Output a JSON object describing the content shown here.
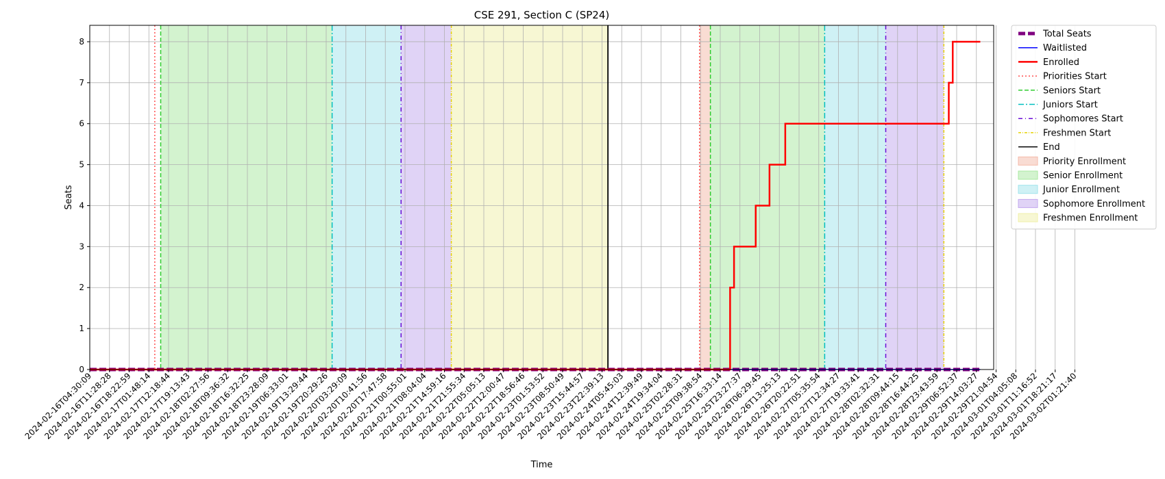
{
  "chart_data": {
    "type": "line",
    "title": "CSE 291, Section C (SP24)",
    "xlabel": "Time",
    "ylabel": "Seats",
    "ylim": [
      0,
      8.4
    ],
    "y_ticks": [
      0,
      1,
      2,
      3,
      4,
      5,
      6,
      7,
      8
    ],
    "grid": true,
    "legend_placement": "outside-right-top",
    "x_tick_labels": [
      "2024-02-16T04:30:09",
      "2024-02-16T11:28:28",
      "2024-02-16T18:22:59",
      "2024-02-17T01:48:14",
      "2024-02-17T12:18:44",
      "2024-02-17T19:13:43",
      "2024-02-18T02:27:56",
      "2024-02-18T09:36:32",
      "2024-02-18T16:32:25",
      "2024-02-18T23:28:09",
      "2024-02-19T06:33:01",
      "2024-02-19T13:29:44",
      "2024-02-19T20:29:26",
      "2024-02-20T03:29:09",
      "2024-02-20T10:41:56",
      "2024-02-20T17:47:58",
      "2024-02-21T00:55:01",
      "2024-02-21T08:04:04",
      "2024-02-21T14:59:16",
      "2024-02-21T21:55:34",
      "2024-02-22T05:05:13",
      "2024-02-22T12:00:47",
      "2024-02-22T18:56:46",
      "2024-02-23T01:53:52",
      "2024-02-23T08:50:49",
      "2024-02-23T15:44:57",
      "2024-02-23T22:39:13",
      "2024-02-24T05:45:03",
      "2024-02-24T12:39:49",
      "2024-02-24T19:34:04",
      "2024-02-25T02:28:31",
      "2024-02-25T09:38:54",
      "2024-02-25T16:33:14",
      "2024-02-25T23:27:37",
      "2024-02-26T06:29:45",
      "2024-02-26T13:25:13",
      "2024-02-26T20:22:51",
      "2024-02-27T05:35:54",
      "2024-02-27T12:34:27",
      "2024-02-27T19:33:41",
      "2024-02-28T02:32:31",
      "2024-02-28T09:44:15",
      "2024-02-28T16:44:25",
      "2024-02-28T23:43:59",
      "2024-02-29T06:52:37",
      "2024-02-29T14:03:27",
      "2024-02-29T21:04:54",
      "2024-03-01T04:05:08",
      "2024-03-01T11:16:52",
      "2024-03-01T18:21:17",
      "2024-03-02T01:21:40"
    ],
    "x_range_index": [
      0,
      45.2
    ],
    "series": [
      {
        "name": "Total Seats",
        "color": "#800080",
        "style": "dashed-thick",
        "x": [
          0,
          45.2
        ],
        "y": [
          0,
          0
        ]
      },
      {
        "name": "Waitlisted",
        "color": "#0000ff",
        "style": "solid",
        "x": [
          0,
          45.2
        ],
        "y": [
          0,
          0
        ]
      },
      {
        "name": "Enrolled",
        "color": "#ff0000",
        "style": "step",
        "x": [
          0,
          32.5,
          32.5,
          32.7,
          32.7,
          33.8,
          33.8,
          34.5,
          34.5,
          35.3,
          35.3,
          37.8,
          37.8,
          43.6,
          43.6,
          43.8,
          43.8,
          45.2
        ],
        "y": [
          0,
          0,
          2,
          2,
          3,
          3,
          4,
          4,
          5,
          5,
          6,
          6,
          6,
          6,
          7,
          7,
          8,
          8
        ]
      }
    ],
    "start_lines": [
      {
        "name": "Priorities Start",
        "color": "#ff4d4d",
        "style": "dotted",
        "x": [
          3.3,
          30.95
        ]
      },
      {
        "name": "Seniors Start",
        "color": "#2ecc2e",
        "style": "dashed",
        "x": [
          3.6,
          31.5
        ]
      },
      {
        "name": "Juniors Start",
        "color": "#00bfbf",
        "style": "dashdot",
        "x": [
          12.3,
          37.3
        ]
      },
      {
        "name": "Sophomores Start",
        "color": "#6a0dd6",
        "style": "dotdash",
        "x": [
          15.8,
          40.4
        ]
      },
      {
        "name": "Freshmen Start",
        "color": "#e6d200",
        "style": "dashdot-fine",
        "x": [
          18.35,
          43.35
        ]
      },
      {
        "name": "End",
        "color": "#000000",
        "style": "solid",
        "x": [
          26.3
        ]
      }
    ],
    "bands": [
      {
        "name": "Priority Enrollment",
        "color": "#f4b9a8",
        "ranges": [
          [
            30.95,
            31.5
          ]
        ]
      },
      {
        "name": "Senior Enrollment",
        "color": "#a8e8a0",
        "ranges": [
          [
            3.6,
            12.3
          ],
          [
            31.5,
            37.3
          ]
        ]
      },
      {
        "name": "Junior Enrollment",
        "color": "#a0e4ec",
        "ranges": [
          [
            12.3,
            15.8
          ],
          [
            37.3,
            40.4
          ]
        ]
      },
      {
        "name": "Sophomore Enrollment",
        "color": "#c2a8ee",
        "ranges": [
          [
            15.8,
            18.35
          ],
          [
            40.4,
            43.35
          ]
        ]
      },
      {
        "name": "Freshmen Enrollment",
        "color": "#f0f0a8",
        "ranges": [
          [
            18.35,
            26.3
          ]
        ]
      }
    ],
    "legend": [
      {
        "label": "Total Seats",
        "kind": "line",
        "color": "#800080",
        "style": "dashed-thick"
      },
      {
        "label": "Waitlisted",
        "kind": "line",
        "color": "#0000ff",
        "style": "solid"
      },
      {
        "label": "Enrolled",
        "kind": "line",
        "color": "#ff0000",
        "style": "solid-thick"
      },
      {
        "label": "Priorities Start",
        "kind": "line",
        "color": "#ff4d4d",
        "style": "dotted"
      },
      {
        "label": "Seniors Start",
        "kind": "line",
        "color": "#2ecc2e",
        "style": "dashed"
      },
      {
        "label": "Juniors Start",
        "kind": "line",
        "color": "#00bfbf",
        "style": "dashdot"
      },
      {
        "label": "Sophomores Start",
        "kind": "line",
        "color": "#6a0dd6",
        "style": "dotdash"
      },
      {
        "label": "Freshmen Start",
        "kind": "line",
        "color": "#e6d200",
        "style": "dashdot-fine"
      },
      {
        "label": "End",
        "kind": "line",
        "color": "#000000",
        "style": "solid"
      },
      {
        "label": "Priority Enrollment",
        "kind": "patch",
        "color": "#f4b9a8"
      },
      {
        "label": "Senior Enrollment",
        "kind": "patch",
        "color": "#a8e8a0"
      },
      {
        "label": "Junior Enrollment",
        "kind": "patch",
        "color": "#a0e4ec"
      },
      {
        "label": "Sophomore Enrollment",
        "kind": "patch",
        "color": "#c2a8ee"
      },
      {
        "label": "Freshmen Enrollment",
        "kind": "patch",
        "color": "#f0f0a8"
      }
    ]
  }
}
